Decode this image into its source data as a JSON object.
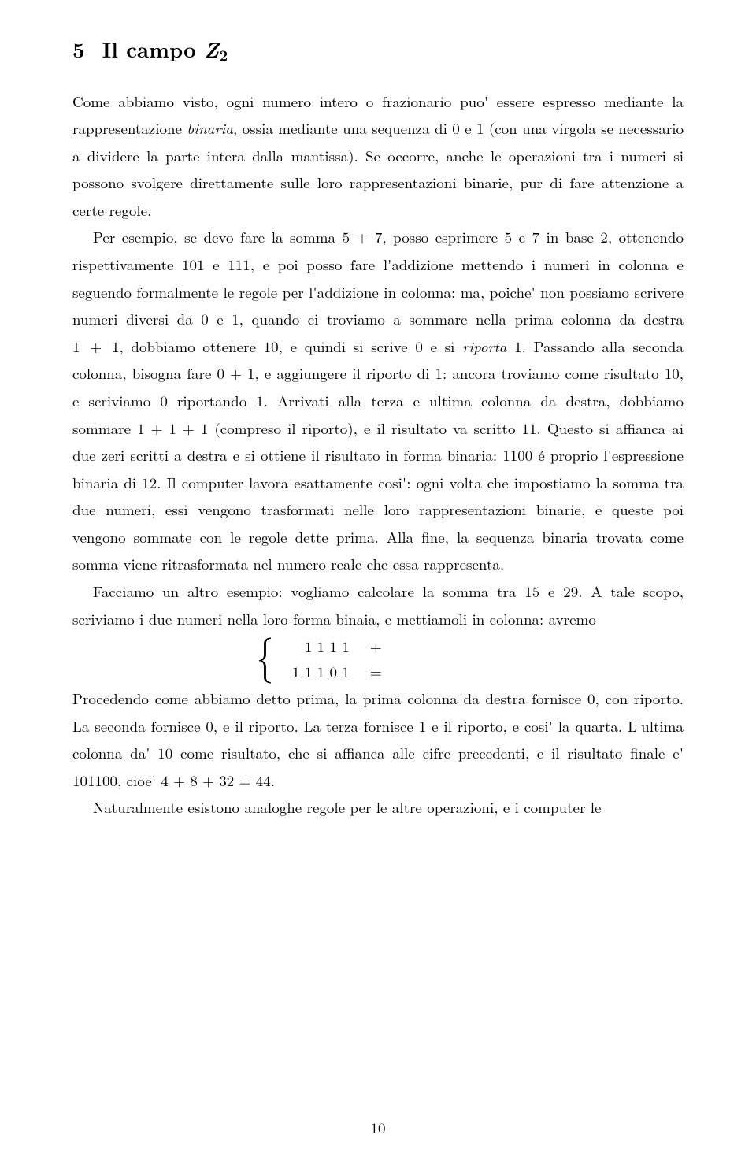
{
  "section": {
    "number": "5",
    "title_pre": "Il campo ",
    "title_sym": "Z",
    "title_sub": "2"
  },
  "para1": "Come abbiamo visto, ogni numero intero o frazionario puo' essere espresso mediante la rappresentazione binaria, ossia mediante una sequenza di 0 e 1 (con una virgola se necessario a dividere la parte intera dalla mantissa). Se occorre, anche le operazioni tra i numeri si possono svolgere direttamente sulle loro rappresentazioni binarie, pur di fare attenzione a certe regole.",
  "para2": "Per esempio, se devo fare la somma 5 + 7, posso esprimere 5 e 7 in base 2, ottenendo rispettivamente 101 e 111, e poi posso fare l'addizione mettendo i numeri in colonna e seguendo formalmente le regole per l'addizione in colonna: ma, poiche' non possiamo scrivere numeri diversi da 0 e 1, quando ci troviamo a sommare nella prima colonna da destra 1 + 1, dobbiamo ottenere 10, e quindi si scrive 0 e si riporta 1. Passando alla seconda colonna, bisogna fare 0 + 1, e aggiungere il riporto di 1: ancora troviamo come risultato 10, e scriviamo 0 riportando 1. Arrivati alla terza e ultima colonna da destra, dobbiamo sommare 1 + 1 + 1 (compreso il riporto), e il risultato va scritto 11. Questo si affianca ai due zeri scritti a destra e si ottiene il risultato in forma binaria: 1100 é proprio l'espressione binaria di 12. Il computer lavora esattamente cosi': ogni volta che impostiamo la somma tra due numeri, essi vengono trasformati nelle loro rappresentazioni binarie, e queste poi vengono sommate con le regole dette prima. Alla fine, la sequenza binaria trovata come somma viene ritrasformata nel numero reale che essa rappresenta.",
  "para3": "Facciamo un altro esempio: vogliamo calcolare la somma tra 15 e 29. A tale scopo, scriviamo i due numeri nella loro forma binaia, e mettiamoli in colonna: avremo",
  "mathrows": {
    "r1_digits": "1 1 1 1",
    "r1_op": "+",
    "r2_digits": "1 1 1 0 1",
    "r2_op": "="
  },
  "para4": "Procedendo come abbiamo detto prima, la prima colonna da destra fornisce 0, con riporto. La seconda fornisce 0, e il riporto. La terza fornisce 1 e il riporto, e cosi' la quarta. L'ultima colonna da' 10 come risultato, che si affianca alle cifre precedenti, e il risultato finale e' 101100, cioe' 4 + 8 + 32 = 44.",
  "para5": "Naturalmente esistono analoghe regole per le altre operazioni, e i computer le",
  "italic_words": {
    "binaria": "binaria",
    "riporta": "riporta"
  },
  "page_number": "10"
}
